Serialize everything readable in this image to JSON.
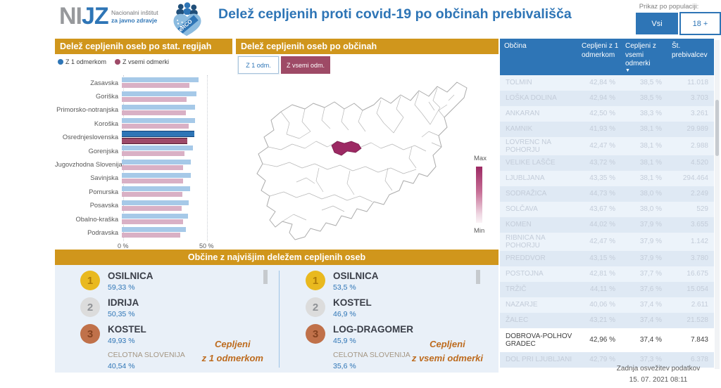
{
  "header": {
    "logo": {
      "ni": "NI",
      "jz": "JZ",
      "line1": "Nacionalni inštitut",
      "line2": "za javno zdravje",
      "badge": "eRCO"
    },
    "title": "Delež cepljenih proti covid-19 po občinah prebivališča",
    "population_filter": {
      "label": "Prikaz po populaciji:",
      "options": [
        {
          "label": "Vsi",
          "selected": true
        },
        {
          "label": "18 +",
          "selected": false
        }
      ]
    }
  },
  "colors": {
    "accent_blue": "#2E75B6",
    "panel_orange": "#D0961C",
    "maroon": "#9E4A66",
    "bar_blue": "#A6C9E8",
    "bar_pink": "#D9B0C5",
    "map_highlight": "#9C2963"
  },
  "chart_data": [
    {
      "id": "regions-bar",
      "type": "bar",
      "orientation": "horizontal",
      "title": "Delež cepljenih oseb po stat. regijah",
      "categories": [
        "Zasavska",
        "Goriška",
        "Primorsko-notranjska",
        "Koroška",
        "Osrednjeslovenska",
        "Gorenjska",
        "Jugovzhodna Slovenija",
        "Savinjska",
        "Pomurska",
        "Posavska",
        "Obalno-kraška",
        "Podravska"
      ],
      "series": [
        {
          "name": "Z 1 odmerkom",
          "legend_color": "#2E75B6",
          "bar_color": "#A6C9E8",
          "values": [
            45.7,
            44.3,
            43.6,
            43.5,
            43.4,
            42.4,
            41.2,
            41.0,
            40.6,
            39.8,
            39.4,
            38.2
          ]
        },
        {
          "name": "Z vsemi odmerki",
          "legend_color": "#9E4A68",
          "bar_color": "#D9B0C5",
          "values": [
            40.2,
            38.6,
            38.2,
            39.8,
            38.8,
            37.3,
            36.4,
            36.6,
            36.1,
            35.5,
            36.3,
            35.0
          ]
        }
      ],
      "highlighted_category": "Osrednjeslovenska",
      "xlim": [
        0,
        65
      ],
      "ticks": [
        {
          "value": 0,
          "label": "0 %"
        },
        {
          "value": 50,
          "label": "50 %"
        }
      ],
      "grid": "dotted-vertical",
      "legend_position": "top"
    },
    {
      "id": "municipality-map",
      "type": "heatmap",
      "subtype": "choropleth-map",
      "title": "Delež cepljenih oseb po občinah",
      "legend": {
        "max": "Max",
        "min": "Min"
      },
      "color_scale": [
        "#FAF3F6",
        "#9C2963"
      ],
      "highlighted_municipality": "DOBROVA-POLHOV GRADEC"
    },
    {
      "id": "municipality-table",
      "type": "table",
      "columns": [
        "Občina",
        "Cepljeni z 1 odmerkom",
        "Cepljeni z vsemi odmerki",
        "Št. prebivalcev"
      ],
      "sort": {
        "column": "Cepljeni z vsemi odmerki",
        "direction": "desc"
      },
      "selected_row": "DOBROVA-POLHOV GRADEC",
      "rows": [
        [
          "TOLMIN",
          "42,84 %",
          "38,5 %",
          "11.018"
        ],
        [
          "LOŠKA DOLINA",
          "42,94 %",
          "38,5 %",
          "3.703"
        ],
        [
          "ANKARAN",
          "42,50 %",
          "38,3 %",
          "3.261"
        ],
        [
          "KAMNIK",
          "41,93 %",
          "38,1 %",
          "29.989"
        ],
        [
          "LOVRENC NA POHORJU",
          "42,47 %",
          "38,1 %",
          "2.988"
        ],
        [
          "VELIKE LAŠČE",
          "43,72 %",
          "38,1 %",
          "4.520"
        ],
        [
          "LJUBLJANA",
          "43,35 %",
          "38,1 %",
          "294.464"
        ],
        [
          "SODRAŽICA",
          "44,73 %",
          "38,0 %",
          "2.249"
        ],
        [
          "SOLČAVA",
          "43,67 %",
          "38,0 %",
          "529"
        ],
        [
          "KOMEN",
          "44,02 %",
          "37,9 %",
          "3.655"
        ],
        [
          "RIBNICA NA POHORJU",
          "42,47 %",
          "37,9 %",
          "1.142"
        ],
        [
          "PREDDVOR",
          "43,15 %",
          "37,9 %",
          "3.780"
        ],
        [
          "POSTOJNA",
          "42,81 %",
          "37,7 %",
          "16.675"
        ],
        [
          "TRŽIČ",
          "44,11 %",
          "37,6 %",
          "15.054"
        ],
        [
          "NAZARJE",
          "40,06 %",
          "37,4 %",
          "2.611"
        ],
        [
          "ŽALEC",
          "43,21 %",
          "37,4 %",
          "21.528"
        ],
        [
          "DOBROVA-POLHOV GRADEC",
          "42,96 %",
          "37,4 %",
          "7.843"
        ],
        [
          "DOL PRI LJUBLJANI",
          "42,79 %",
          "37,3 %",
          "6.378"
        ]
      ]
    }
  ],
  "map_panel": {
    "buttons": [
      {
        "label": "Z 1 odm.",
        "selected": false
      },
      {
        "label": "Z vsemi odm.",
        "selected": true
      }
    ]
  },
  "top_panel": {
    "title": "Občine z najvišjim deležem cepljenih oseb",
    "lists": [
      {
        "caption": [
          "Cepljeni",
          "z 1 odmerkom"
        ],
        "entries": [
          {
            "rank": "1",
            "name": "OSILNICA",
            "value": "59,33 %"
          },
          {
            "rank": "2",
            "name": "IDRIJA",
            "value": "50,35 %"
          },
          {
            "rank": "3",
            "name": "KOSTEL",
            "value": "49,93 %"
          }
        ],
        "total": {
          "name": "CELOTNA SLOVENIJA",
          "value": "40,54 %"
        }
      },
      {
        "caption": [
          "Cepljeni",
          "z vsemi odmerki"
        ],
        "entries": [
          {
            "rank": "1",
            "name": "OSILNICA",
            "value": "53,5 %"
          },
          {
            "rank": "2",
            "name": "KOSTEL",
            "value": "46,9 %"
          },
          {
            "rank": "3",
            "name": "LOG-DRAGOMER",
            "value": "45,9 %"
          }
        ],
        "total": {
          "name": "CELOTNA SLOVENIJA",
          "value": "35,6 %"
        }
      }
    ]
  },
  "footer": {
    "line1": "Zadnja osvežitev podatkov",
    "line2": "15. 07. 2021 08:11"
  }
}
